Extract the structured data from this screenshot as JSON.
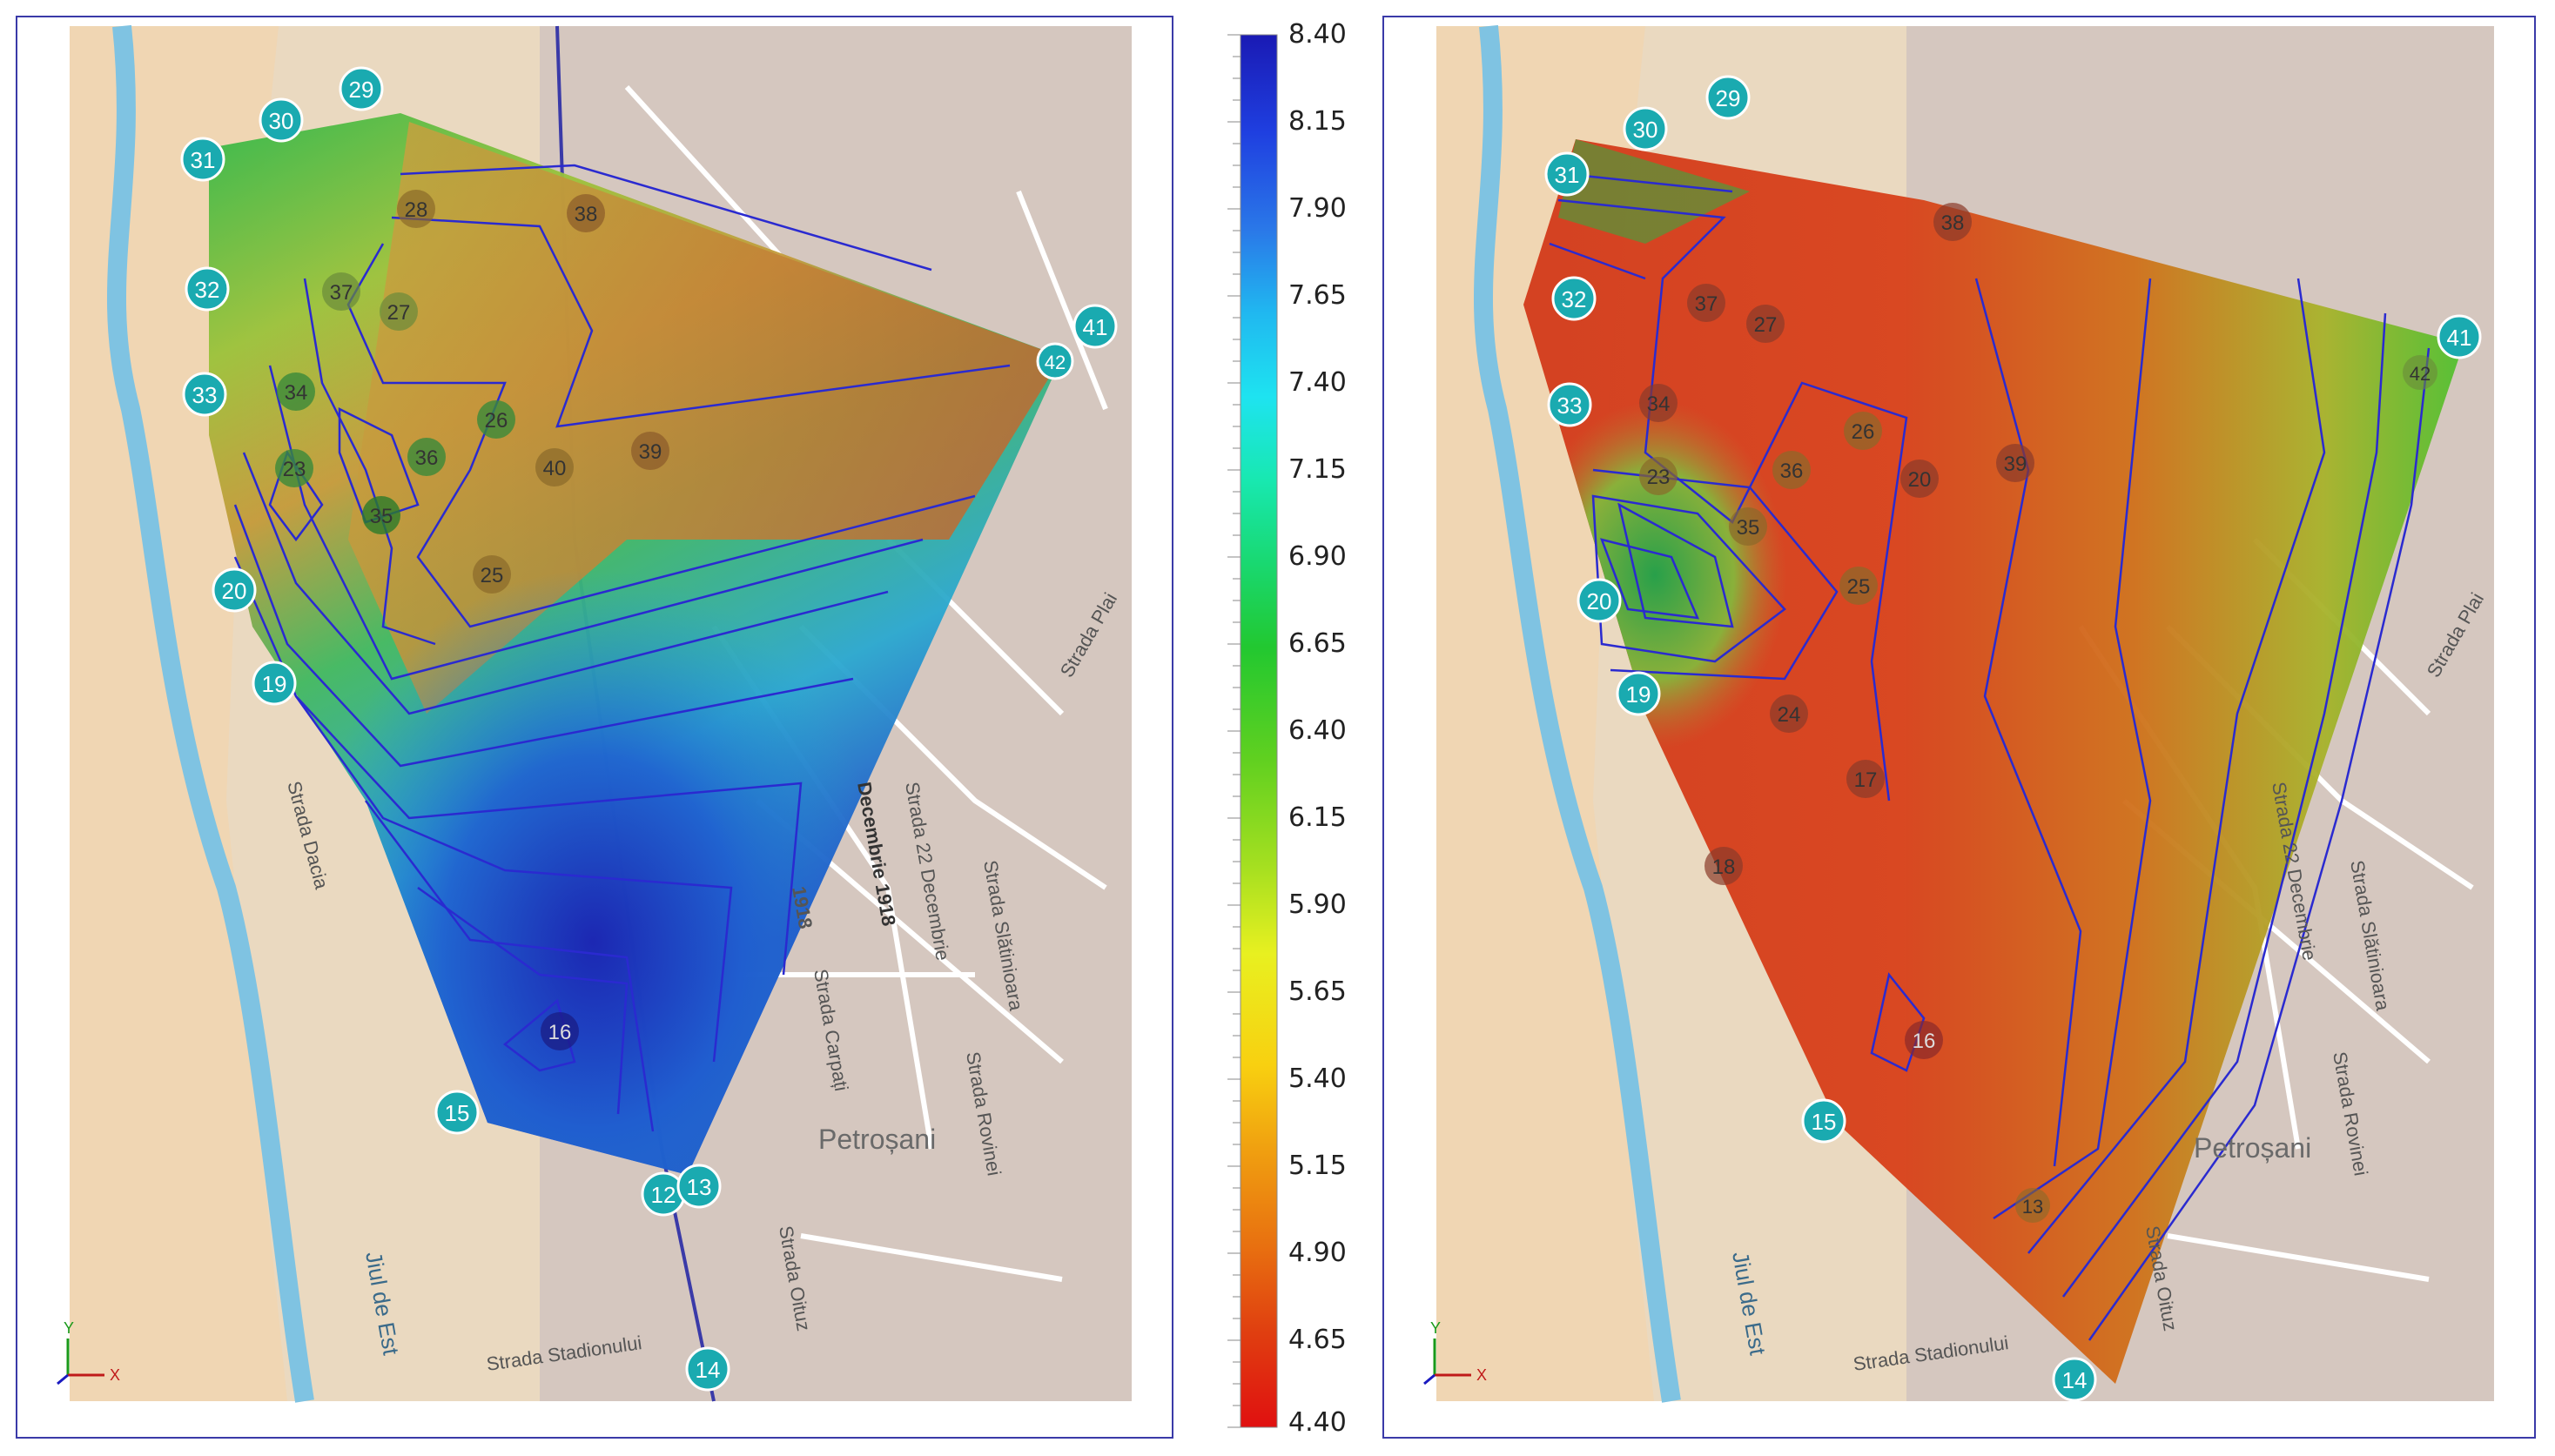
{
  "colorbar": {
    "labels": [
      "8.40",
      "8.15",
      "7.90",
      "7.65",
      "7.40",
      "7.15",
      "6.90",
      "6.65",
      "6.40",
      "6.15",
      "5.90",
      "5.65",
      "5.40",
      "5.15",
      "4.90",
      "4.65",
      "4.40"
    ],
    "colors": [
      "#1a1ab4",
      "#1f3fe0",
      "#2a78e8",
      "#20b8f0",
      "#1ee3f0",
      "#18e8b0",
      "#19d870",
      "#22c830",
      "#60d020",
      "#a8e020",
      "#e8f020",
      "#f8d010",
      "#f0a010",
      "#e87010",
      "#e04010",
      "#e01010"
    ]
  },
  "map_labels": {
    "street_1918": "1918",
    "street_decembrie": "Strada 22 Decembrie",
    "street_carpati": "Strada Carpați",
    "street_slatinioara": "Strada Slătinioara",
    "street_roviner": "Strada Rovinei",
    "street_olituz": "Strada Oituz",
    "street_stadionului": "Strada Stadionului",
    "street_dacia": "Strada Dacia",
    "street_plai": "Strada Plai",
    "river": "Jiul de Est",
    "city": "Petroșani",
    "decembrie_1918": "Decembrie 1918"
  },
  "axes": {
    "y": "Y",
    "x": "X"
  },
  "left_map": {
    "points": [
      {
        "label": "29"
      },
      {
        "label": "30"
      },
      {
        "label": "31"
      },
      {
        "label": "32"
      },
      {
        "label": "33"
      },
      {
        "label": "34"
      },
      {
        "label": "23"
      },
      {
        "label": "20"
      },
      {
        "label": "19"
      },
      {
        "label": "15"
      },
      {
        "label": "12"
      },
      {
        "label": "13"
      },
      {
        "label": "14"
      },
      {
        "label": "16"
      },
      {
        "label": "41"
      },
      {
        "label": "42"
      },
      {
        "label": "36"
      },
      {
        "label": "26"
      },
      {
        "label": "39"
      },
      {
        "label": "40"
      },
      {
        "label": "25"
      },
      {
        "label": "27"
      },
      {
        "label": "37"
      },
      {
        "label": "28"
      },
      {
        "label": "38"
      },
      {
        "label": "35"
      }
    ]
  },
  "right_map": {
    "points": [
      {
        "label": "29"
      },
      {
        "label": "30"
      },
      {
        "label": "31"
      },
      {
        "label": "32"
      },
      {
        "label": "33"
      },
      {
        "label": "34"
      },
      {
        "label": "23"
      },
      {
        "label": "20"
      },
      {
        "label": "19"
      },
      {
        "label": "15"
      },
      {
        "label": "14"
      },
      {
        "label": "13"
      },
      {
        "label": "16"
      },
      {
        "label": "41"
      },
      {
        "label": "42"
      },
      {
        "label": "36"
      },
      {
        "label": "26"
      },
      {
        "label": "39"
      },
      {
        "label": "20"
      },
      {
        "label": "25"
      },
      {
        "label": "35"
      },
      {
        "label": "27"
      },
      {
        "label": "37"
      },
      {
        "label": "24"
      },
      {
        "label": "17"
      },
      {
        "label": "18"
      },
      {
        "label": "38"
      }
    ]
  }
}
